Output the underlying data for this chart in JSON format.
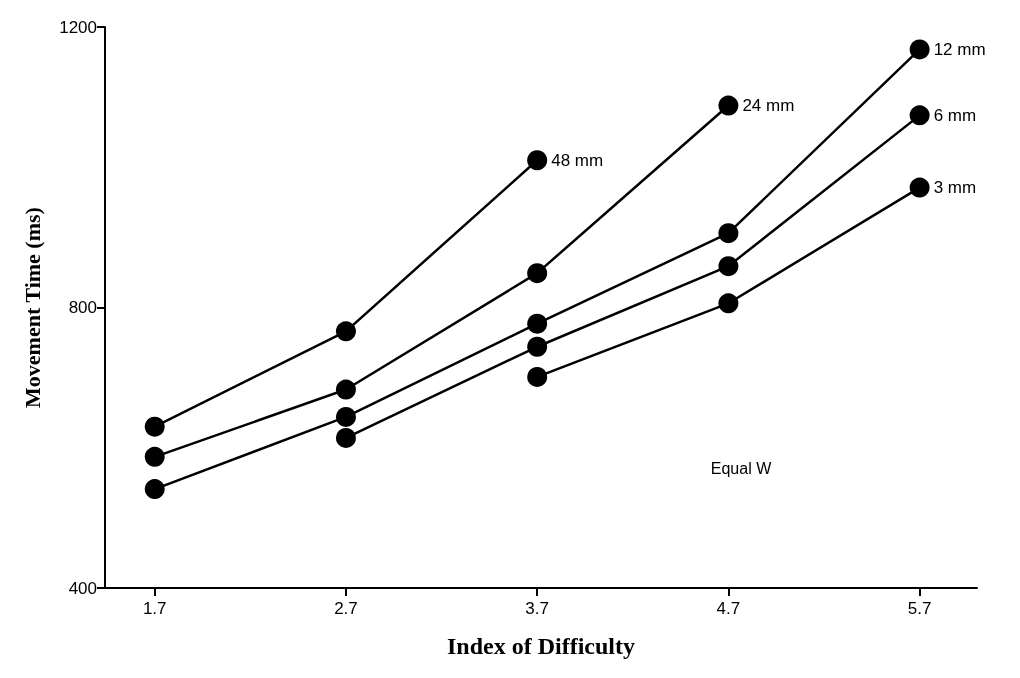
{
  "chart_data": {
    "type": "line",
    "xlabel": "Index of Difficulty",
    "ylabel": "Movement Time (ms)",
    "xlim": [
      1.44,
      6.0
    ],
    "xticks": [
      {
        "value": 1.7,
        "label": "1.7"
      },
      {
        "value": 2.7,
        "label": "2.7"
      },
      {
        "value": 3.7,
        "label": "3.7"
      },
      {
        "value": 4.7,
        "label": "4.7"
      },
      {
        "value": 5.7,
        "label": "5.7"
      }
    ],
    "ylim": [
      400,
      1200
    ],
    "yticks": [
      400,
      800,
      1200
    ],
    "grid": false,
    "legend": false,
    "marker": "circle",
    "line_style": "solid",
    "series": [
      {
        "name": "48 mm",
        "color": "#000000",
        "x": [
          1.7,
          2.7,
          3.7
        ],
        "values": [
          630,
          766,
          1010
        ]
      },
      {
        "name": "24 mm",
        "color": "#000000",
        "x": [
          1.7,
          2.7,
          3.7,
          4.7
        ],
        "values": [
          587,
          683,
          849,
          1088
        ]
      },
      {
        "name": "12 mm",
        "color": "#000000",
        "x": [
          1.7,
          2.7,
          3.7,
          4.7,
          5.7
        ],
        "values": [
          541,
          644,
          777,
          906,
          1168
        ]
      },
      {
        "name": "6 mm",
        "color": "#000000",
        "x": [
          2.7,
          3.7,
          4.7,
          5.7
        ],
        "values": [
          614,
          744,
          859,
          1074
        ]
      },
      {
        "name": "3 mm",
        "color": "#000000",
        "x": [
          3.7,
          4.7,
          5.7
        ],
        "values": [
          701,
          806,
          971
        ]
      }
    ],
    "annotations": [
      "Equal W"
    ]
  }
}
